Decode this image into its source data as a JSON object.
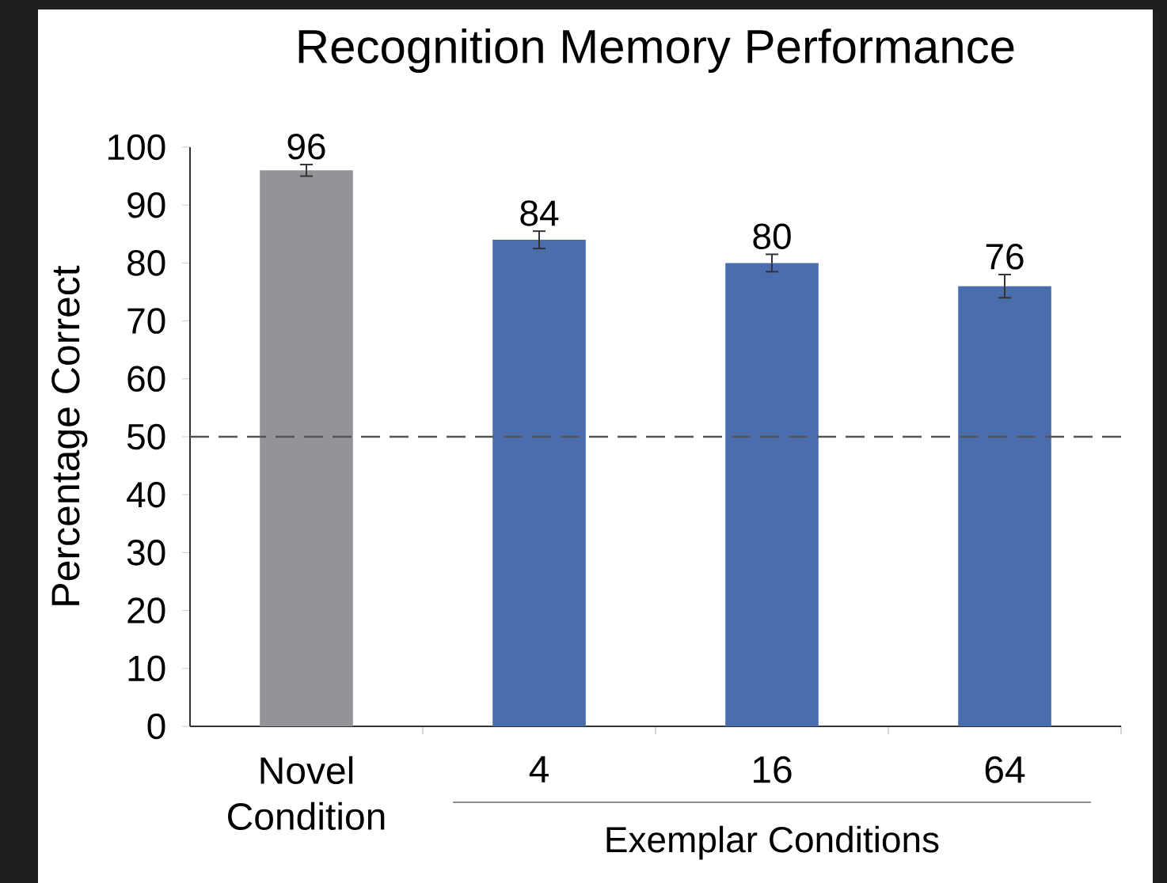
{
  "chart_data": {
    "type": "bar",
    "title": "Recognition Memory Performance",
    "ylabel": "Percentage Correct",
    "categories": [
      "Novel Condition",
      "4",
      "16",
      "64"
    ],
    "values": [
      96,
      84,
      80,
      76
    ],
    "errors": [
      1,
      1.5,
      1.5,
      2
    ],
    "colors": [
      "#949498",
      "#4a6ead",
      "#4a6ead",
      "#4a6ead"
    ],
    "ylim": [
      0,
      100
    ],
    "yticks": [
      0,
      10,
      20,
      30,
      40,
      50,
      60,
      70,
      80,
      90,
      100
    ],
    "data_labels": true,
    "grid": false,
    "ref_lines": [
      {
        "axis": "y",
        "value": 50,
        "color": "#555555",
        "line_style": "dashed"
      }
    ],
    "annotations": [
      "Exemplar Conditions"
    ]
  }
}
